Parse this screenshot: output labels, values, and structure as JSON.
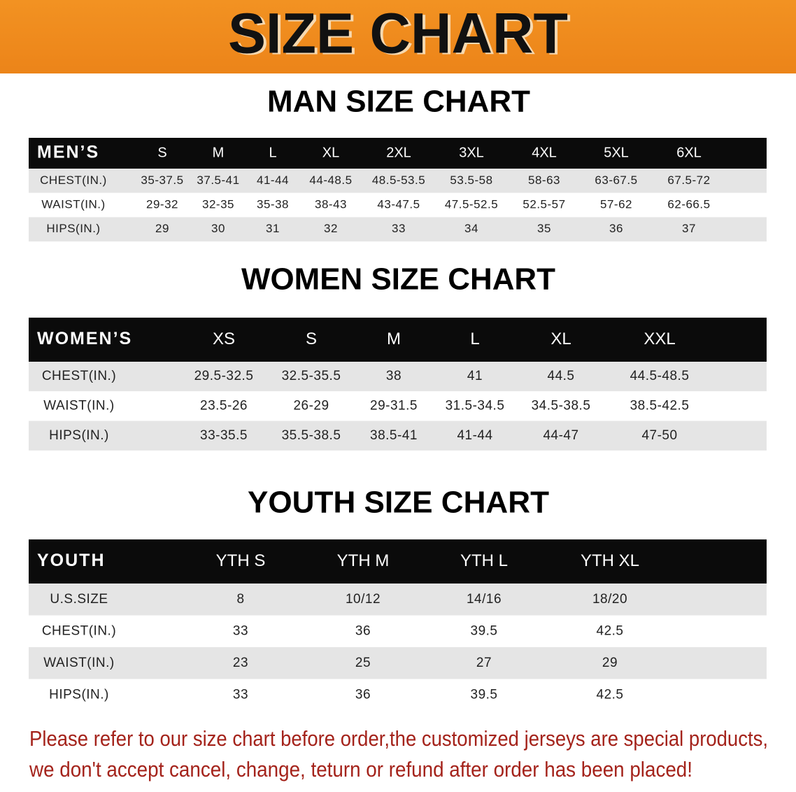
{
  "header": {
    "title": "SIZE CHART"
  },
  "sections": [
    {
      "title": "MAN SIZE CHART",
      "table": {
        "header": [
          "MEN’S",
          "S",
          "M",
          "L",
          "XL",
          "2XL",
          "3XL",
          "4XL",
          "5XL",
          "6XL"
        ],
        "rows": [
          [
            "CHEST(IN.)",
            "35-37.5",
            "37.5-41",
            "41-44",
            "44-48.5",
            "48.5-53.5",
            "53.5-58",
            "58-63",
            "63-67.5",
            "67.5-72"
          ],
          [
            "WAIST(IN.)",
            "29-32",
            "32-35",
            "35-38",
            "38-43",
            "43-47.5",
            "47.5-52.5",
            "52.5-57",
            "57-62",
            "62-66.5"
          ],
          [
            "HIPS(IN.)",
            "29",
            "30",
            "31",
            "32",
            "33",
            "34",
            "35",
            "36",
            "37"
          ]
        ]
      }
    },
    {
      "title": "WOMEN SIZE CHART",
      "table": {
        "header": [
          "WOMEN’S",
          "XS",
          "S",
          "M",
          "L",
          "XL",
          "XXL"
        ],
        "rows": [
          [
            "CHEST(IN.)",
            "29.5-32.5",
            "32.5-35.5",
            "38",
            "41",
            "44.5",
            "44.5-48.5"
          ],
          [
            "WAIST(IN.)",
            "23.5-26",
            "26-29",
            "29-31.5",
            "31.5-34.5",
            "34.5-38.5",
            "38.5-42.5"
          ],
          [
            "HIPS(IN.)",
            "33-35.5",
            "35.5-38.5",
            "38.5-41",
            "41-44",
            "44-47",
            "47-50"
          ]
        ]
      }
    },
    {
      "title": "YOUTH SIZE CHART",
      "table": {
        "header": [
          "YOUTH",
          "YTH S",
          "YTH M",
          "YTH L",
          "YTH XL"
        ],
        "rows": [
          [
            "U.S.SIZE",
            "8",
            "10/12",
            "14/16",
            "18/20"
          ],
          [
            "CHEST(IN.)",
            "33",
            "36",
            "39.5",
            "42.5"
          ],
          [
            "WAIST(IN.)",
            "23",
            "25",
            "27",
            "29"
          ],
          [
            "HIPS(IN.)",
            "33",
            "36",
            "39.5",
            "42.5"
          ]
        ]
      }
    }
  ],
  "note": [
    "Please refer to our size chart before order,the customized jerseys are special products,",
    "we don't accept cancel, change, teturn or refund after order has been placed!"
  ]
}
